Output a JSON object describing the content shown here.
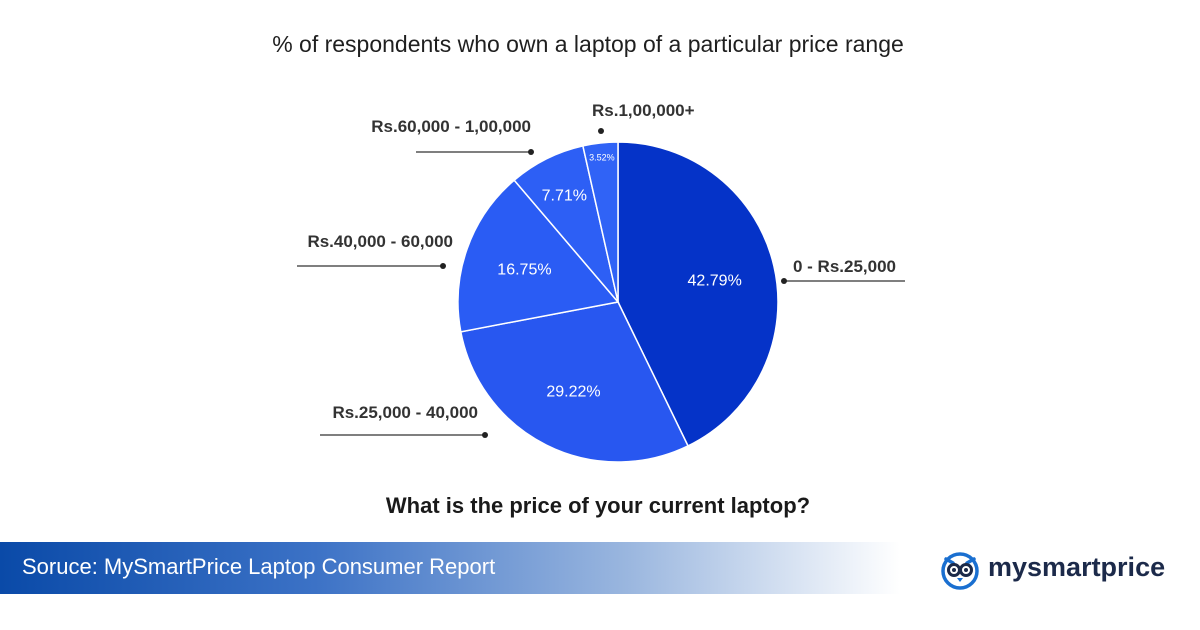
{
  "title": "% of respondents who own a laptop of a particular price range",
  "question": "What is the price of your current laptop?",
  "source": "Soruce: MySmartPrice Laptop Consumer Report",
  "brand": {
    "name": "mysmartprice",
    "icon": "owl-logo-icon",
    "color": "#1c2a4a",
    "icon_color": "#1a6fd0"
  },
  "chart_data": {
    "type": "pie",
    "title": "% of respondents who own a laptop of a particular price range",
    "slices": [
      {
        "label": "0 - Rs.25,000",
        "value": 42.79,
        "value_label": "42.79%",
        "color": "#0533c8"
      },
      {
        "label": "Rs.25,000 - 40,000",
        "value": 29.22,
        "value_label": "29.22%",
        "color": "#2857f0"
      },
      {
        "label": "Rs.40,000 - 60,000",
        "value": 16.75,
        "value_label": "16.75%",
        "color": "#2a5cf4"
      },
      {
        "label": "Rs.60,000 - 1,00,000",
        "value": 7.71,
        "value_label": "7.71%",
        "color": "#2d5ff5"
      },
      {
        "label": "Rs.1,00,000+",
        "value": 3.52,
        "value_label": "3.52%",
        "color": "#3063f6"
      }
    ],
    "start_angle_deg": 0,
    "direction": "clockwise"
  }
}
